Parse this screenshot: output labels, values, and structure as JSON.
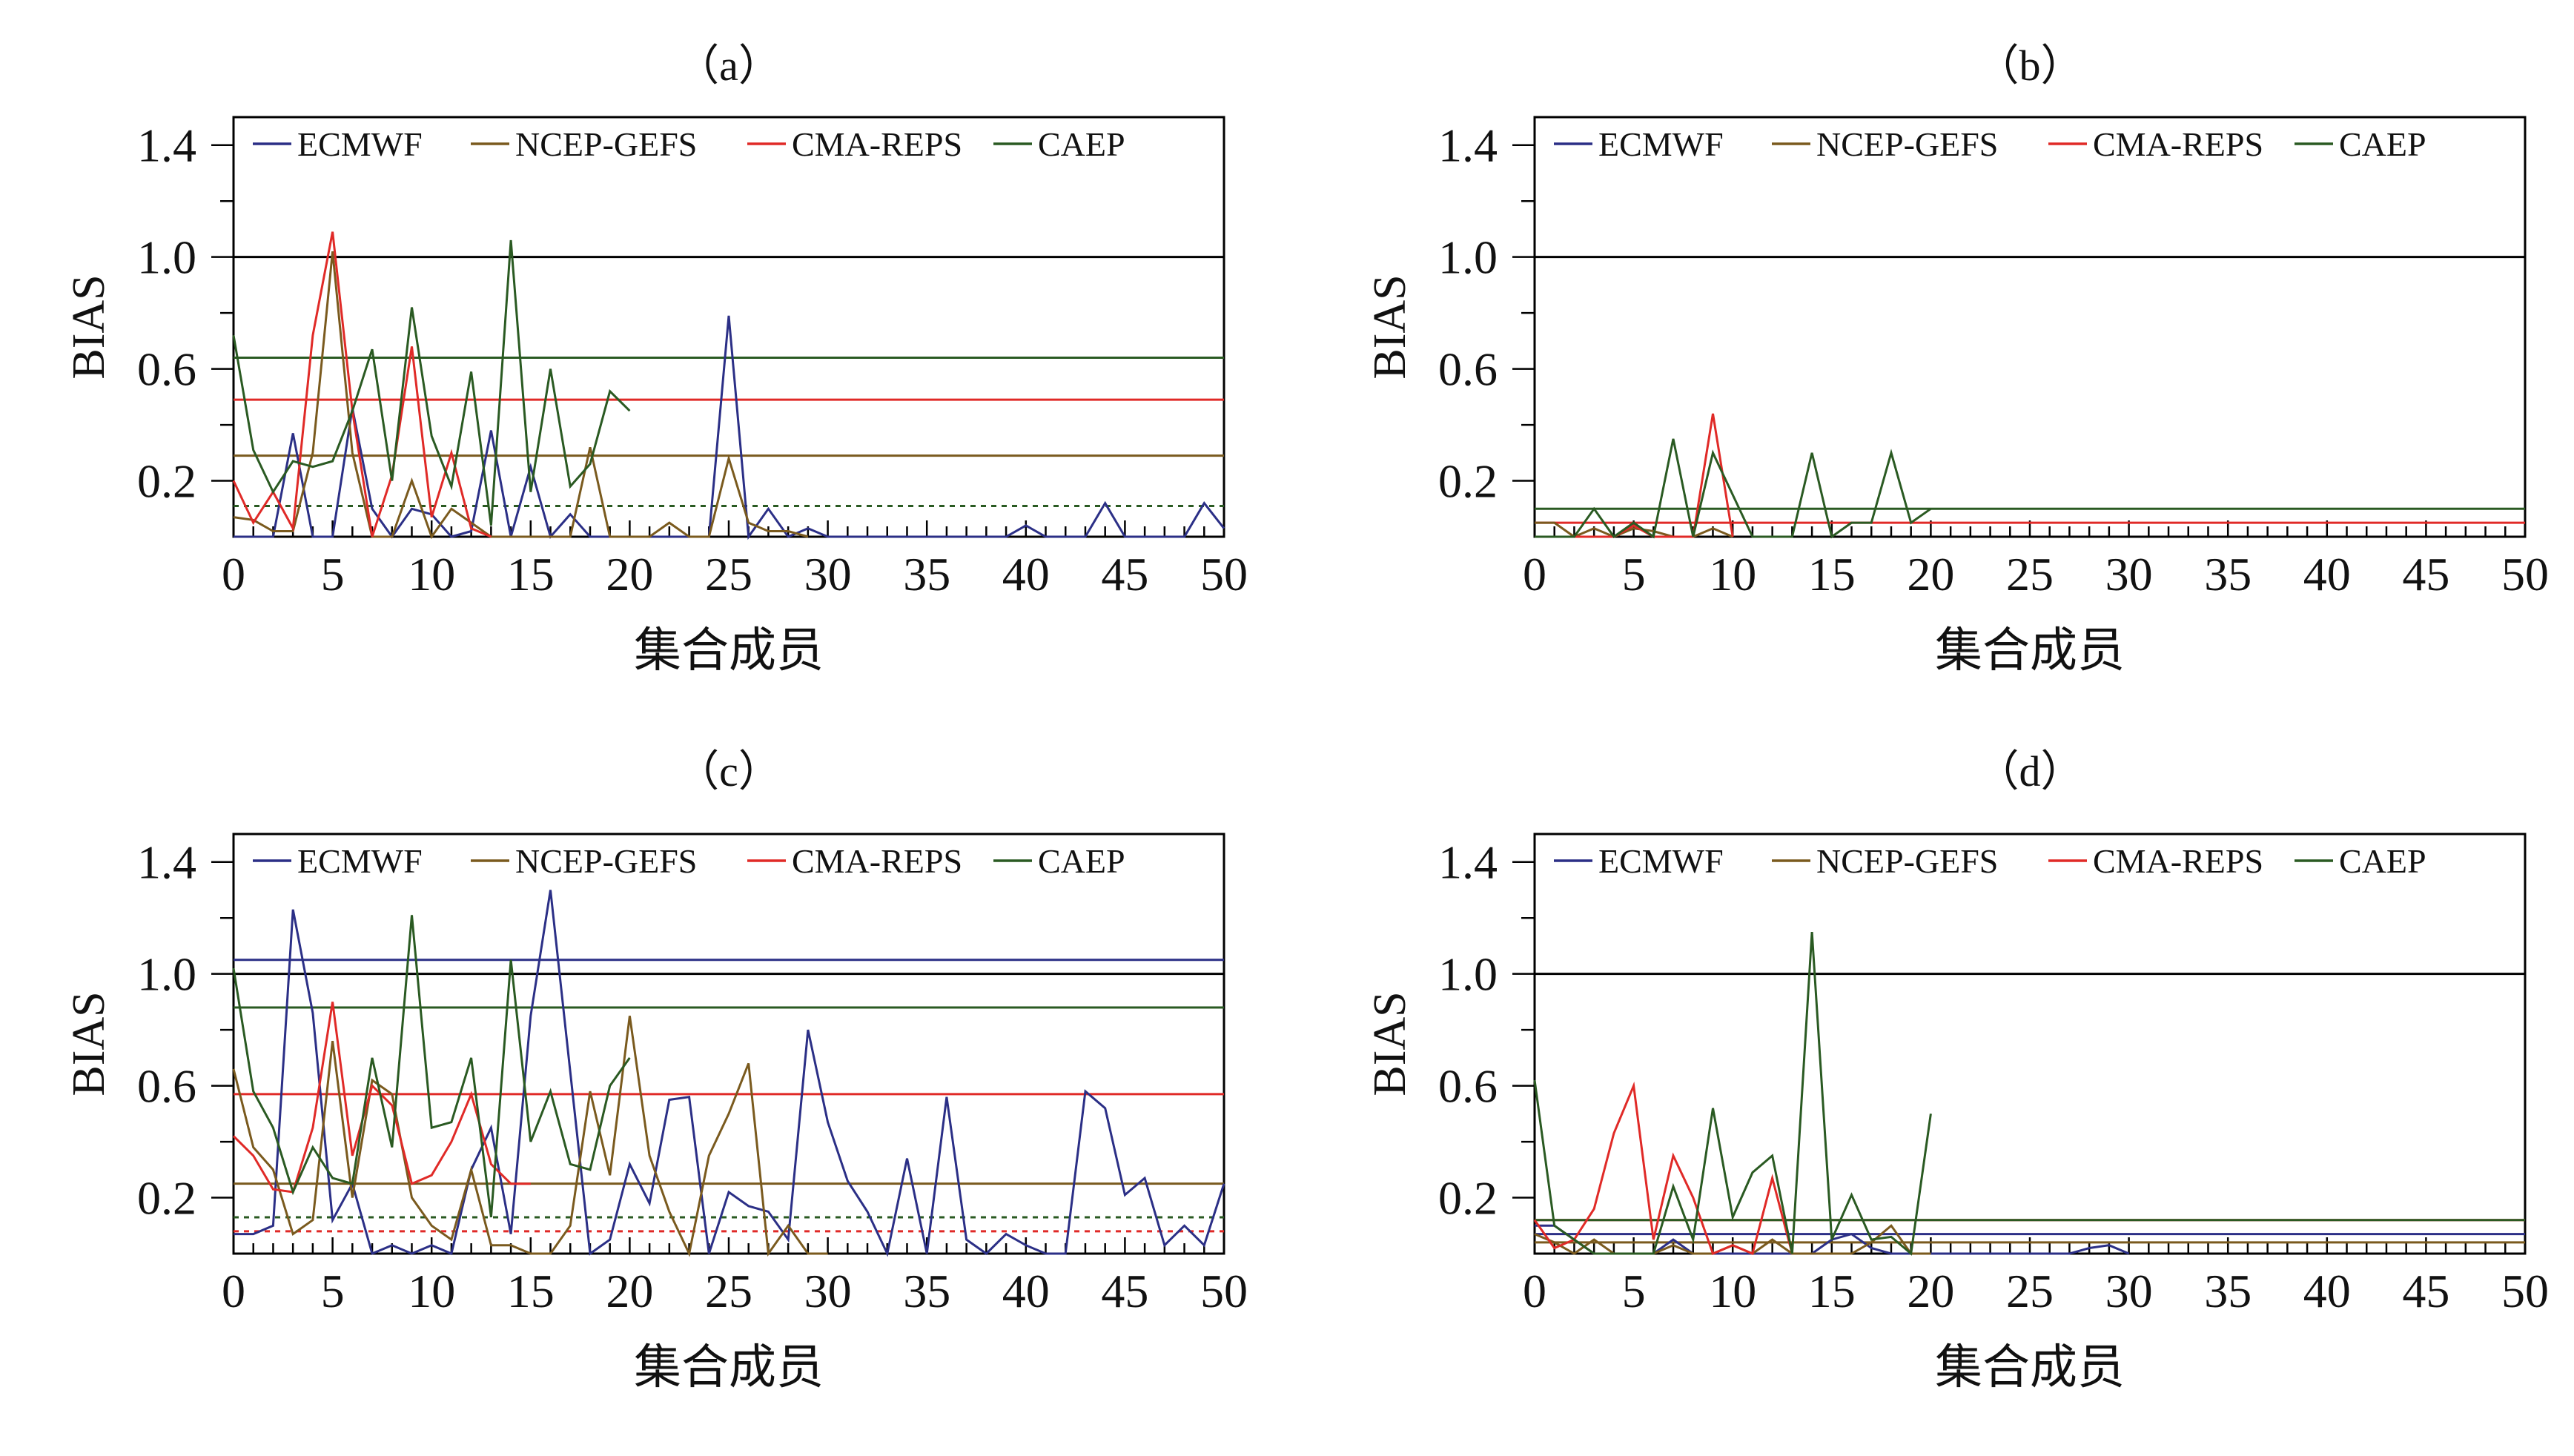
{
  "colors": {
    "ECMWF": "#2b2f86",
    "NCEP-GEFS": "#7a5a1e",
    "CMA-REPS": "#e02a27",
    "CAEP": "#2a5a22",
    "reference": "#000000"
  },
  "chart_data": [
    {
      "type": "line",
      "title": "（a）",
      "xlabel": "集合成员",
      "ylabel": "BIAS",
      "xlim": [
        0,
        50
      ],
      "ylim": [
        0,
        1.5
      ],
      "xticks": [
        0,
        5,
        10,
        15,
        20,
        25,
        30,
        35,
        40,
        45,
        50
      ],
      "yticks": [
        0.2,
        0.6,
        1.0,
        1.4
      ],
      "reference_line": 1.0,
      "legend": [
        "ECMWF",
        "NCEP-GEFS",
        "CMA-REPS",
        "CAEP"
      ],
      "series": [
        {
          "name": "ECMWF",
          "mean": null,
          "mean_style": "solid",
          "x": [
            0,
            1,
            2,
            3,
            4,
            5,
            6,
            7,
            8,
            9,
            10,
            11,
            12,
            13,
            14,
            15,
            16,
            17,
            18,
            19,
            20,
            21,
            22,
            23,
            24,
            25,
            26,
            27,
            28,
            29,
            30,
            31,
            32,
            33,
            34,
            35,
            36,
            37,
            38,
            39,
            40,
            41,
            42,
            43,
            44,
            45,
            46,
            47,
            48,
            49,
            50
          ],
          "values": [
            0,
            0,
            0,
            0.37,
            0,
            0,
            0.46,
            0.1,
            0,
            0.1,
            0.08,
            0,
            0.02,
            0.38,
            0,
            0.25,
            0,
            0.08,
            0,
            0,
            0,
            0,
            0,
            0,
            0,
            0.79,
            0,
            0.1,
            0,
            0.03,
            0,
            0,
            0,
            0,
            0,
            0,
            0,
            0,
            0,
            0,
            0.04,
            0,
            0,
            0,
            0.12,
            0,
            0,
            0,
            0,
            0.12,
            0.03
          ]
        },
        {
          "name": "NCEP-GEFS",
          "mean": 0.29,
          "mean_style": "solid",
          "x": [
            0,
            1,
            2,
            3,
            4,
            5,
            6,
            7,
            8,
            9,
            10,
            11,
            12,
            13,
            14,
            15,
            16,
            17,
            18,
            19,
            20,
            21,
            22,
            23,
            24,
            25,
            26,
            27,
            28,
            29
          ],
          "values": [
            0.07,
            0.06,
            0.02,
            0.02,
            0.3,
            1.02,
            0.3,
            0,
            0,
            0.2,
            0,
            0.1,
            0.05,
            0,
            0,
            0,
            0,
            0,
            0.32,
            0,
            0,
            0,
            0.05,
            0,
            0,
            0.28,
            0.05,
            0.02,
            0.02,
            0
          ]
        },
        {
          "name": "CMA-REPS",
          "mean": 0.49,
          "mean_style": "solid",
          "x": [
            0,
            1,
            2,
            3,
            4,
            5,
            6,
            7,
            8,
            9,
            10,
            11,
            12,
            13
          ],
          "values": [
            0.2,
            0.05,
            0.16,
            0.03,
            0.72,
            1.09,
            0.45,
            0,
            0.22,
            0.68,
            0.07,
            0.3,
            0.03,
            0
          ]
        },
        {
          "name": "CAEP",
          "mean": 0.64,
          "mean_style": "solid",
          "x": [
            0,
            1,
            2,
            3,
            4,
            5,
            6,
            7,
            8,
            9,
            10,
            11,
            12,
            13,
            14,
            15,
            16,
            17,
            18,
            19,
            20
          ],
          "values": [
            0.72,
            0.31,
            0.16,
            0.27,
            0.25,
            0.27,
            0.45,
            0.67,
            0.2,
            0.82,
            0.36,
            0.18,
            0.59,
            0.04,
            1.06,
            0.16,
            0.6,
            0.18,
            0.26,
            0.52,
            0.45
          ]
        }
      ],
      "dotted_line": {
        "value": 0.11,
        "color_series": "CAEP"
      }
    },
    {
      "type": "line",
      "title": "（b）",
      "xlabel": "集合成员",
      "ylabel": "BIAS",
      "xlim": [
        0,
        50
      ],
      "ylim": [
        0,
        1.5
      ],
      "xticks": [
        0,
        5,
        10,
        15,
        20,
        25,
        30,
        35,
        40,
        45,
        50
      ],
      "yticks": [
        0.2,
        0.6,
        1.0,
        1.4
      ],
      "reference_line": 1.0,
      "legend": [
        "ECMWF",
        "NCEP-GEFS",
        "CMA-REPS",
        "CAEP"
      ],
      "series": [
        {
          "name": "ECMWF",
          "mean": null,
          "mean_style": "solid",
          "x": [],
          "values": []
        },
        {
          "name": "NCEP-GEFS",
          "mean": null,
          "mean_style": "solid",
          "x": [
            0,
            1,
            2,
            3,
            4,
            5,
            6,
            7,
            8,
            9,
            10
          ],
          "values": [
            0.05,
            0.05,
            0,
            0.03,
            0,
            0.03,
            0.02,
            0,
            0,
            0.03,
            0
          ]
        },
        {
          "name": "CMA-REPS",
          "mean": 0.05,
          "mean_style": "solid",
          "x": [
            0,
            1,
            2,
            3,
            4,
            5,
            6,
            7,
            8,
            9,
            10
          ],
          "values": [
            0,
            0,
            0,
            0,
            0,
            0.04,
            0,
            0,
            0,
            0.44,
            0
          ]
        },
        {
          "name": "CAEP",
          "mean": 0.1,
          "mean_style": "solid",
          "x": [
            0,
            1,
            2,
            3,
            4,
            5,
            6,
            7,
            8,
            9,
            10,
            11,
            12,
            13,
            14,
            15,
            16,
            17,
            18,
            19,
            20
          ],
          "values": [
            0,
            0,
            0,
            0.1,
            0,
            0.05,
            0,
            0.35,
            0,
            0.3,
            0.15,
            0,
            0,
            0,
            0.3,
            0,
            0.05,
            0.05,
            0.3,
            0.05,
            0.1
          ]
        }
      ],
      "dotted_line": null
    },
    {
      "type": "line",
      "title": "（c）",
      "xlabel": "集合成员",
      "ylabel": "BIAS",
      "xlim": [
        0,
        50
      ],
      "ylim": [
        0,
        1.5
      ],
      "xticks": [
        0,
        5,
        10,
        15,
        20,
        25,
        30,
        35,
        40,
        45,
        50
      ],
      "yticks": [
        0.2,
        0.6,
        1.0,
        1.4
      ],
      "reference_line": 1.0,
      "legend": [
        "ECMWF",
        "NCEP-GEFS",
        "CMA-REPS",
        "CAEP"
      ],
      "series": [
        {
          "name": "ECMWF",
          "mean": 1.05,
          "mean_style": "solid",
          "x": [
            0,
            1,
            2,
            3,
            4,
            5,
            6,
            7,
            8,
            9,
            10,
            11,
            12,
            13,
            14,
            15,
            16,
            17,
            18,
            19,
            20,
            21,
            22,
            23,
            24,
            25,
            26,
            27,
            28,
            29,
            30,
            31,
            32,
            33,
            34,
            35,
            36,
            37,
            38,
            39,
            40,
            41,
            42,
            43,
            44,
            45,
            46,
            47,
            48,
            49,
            50
          ],
          "values": [
            0.07,
            0.07,
            0.1,
            1.23,
            0.86,
            0.12,
            0.25,
            0,
            0.03,
            0,
            0.03,
            0,
            0.3,
            0.45,
            0.07,
            0.85,
            1.3,
            0.65,
            0,
            0.05,
            0.32,
            0.18,
            0.55,
            0.56,
            0,
            0.22,
            0.17,
            0.15,
            0.05,
            0.8,
            0.47,
            0.26,
            0.15,
            0,
            0.34,
            0,
            0.56,
            0.05,
            0,
            0.07,
            0.03,
            0,
            0,
            0.58,
            0.52,
            0.21,
            0.27,
            0.03,
            0.1,
            0.03,
            0.25
          ]
        },
        {
          "name": "NCEP-GEFS",
          "mean": 0.25,
          "mean_style": "solid",
          "x": [
            0,
            1,
            2,
            3,
            4,
            5,
            6,
            7,
            8,
            9,
            10,
            11,
            12,
            13,
            14,
            15,
            16,
            17,
            18,
            19,
            20,
            21,
            22,
            23,
            24,
            25,
            26,
            27,
            28,
            29,
            30
          ],
          "values": [
            0.66,
            0.38,
            0.3,
            0.07,
            0.12,
            0.76,
            0.2,
            0.62,
            0.57,
            0.2,
            0.1,
            0.05,
            0.3,
            0.03,
            0.03,
            0,
            0,
            0.1,
            0.58,
            0.28,
            0.85,
            0.35,
            0.15,
            0,
            0.35,
            0.5,
            0.68,
            0,
            0.1,
            0,
            0
          ]
        },
        {
          "name": "CMA-REPS",
          "mean": 0.57,
          "mean_style": "solid",
          "x": [
            0,
            1,
            2,
            3,
            4,
            5,
            6,
            7,
            8,
            9,
            10,
            11,
            12,
            13,
            14,
            15
          ],
          "values": [
            0.42,
            0.35,
            0.23,
            0.22,
            0.45,
            0.9,
            0.35,
            0.6,
            0.53,
            0.25,
            0.28,
            0.4,
            0.57,
            0.32,
            0.25,
            0.25
          ]
        },
        {
          "name": "CAEP",
          "mean": 0.88,
          "mean_style": "solid",
          "x": [
            0,
            1,
            2,
            3,
            4,
            5,
            6,
            7,
            8,
            9,
            10,
            11,
            12,
            13,
            14,
            15,
            16,
            17,
            18,
            19,
            20
          ],
          "values": [
            1.02,
            0.58,
            0.45,
            0.22,
            0.38,
            0.27,
            0.25,
            0.7,
            0.38,
            1.21,
            0.45,
            0.47,
            0.7,
            0.13,
            1.05,
            0.4,
            0.58,
            0.32,
            0.3,
            0.6,
            0.7
          ]
        }
      ],
      "dotted_lines": [
        {
          "value": 0.13,
          "color_series": "CAEP"
        },
        {
          "value": 0.08,
          "color_series": "CMA-REPS"
        }
      ]
    },
    {
      "type": "line",
      "title": "（d）",
      "xlabel": "集合成员",
      "ylabel": "BIAS",
      "xlim": [
        0,
        50
      ],
      "ylim": [
        0,
        1.5
      ],
      "xticks": [
        0,
        5,
        10,
        15,
        20,
        25,
        30,
        35,
        40,
        45,
        50
      ],
      "yticks": [
        0.2,
        0.6,
        1.0,
        1.4
      ],
      "reference_line": 1.0,
      "legend": [
        "ECMWF",
        "NCEP-GEFS",
        "CMA-REPS",
        "CAEP"
      ],
      "series": [
        {
          "name": "ECMWF",
          "mean": 0.07,
          "mean_style": "solid",
          "x": [
            0,
            1,
            2,
            3,
            4,
            5,
            6,
            7,
            8,
            9,
            10,
            11,
            12,
            13,
            14,
            15,
            16,
            17,
            18,
            19,
            20,
            21,
            22,
            23,
            24,
            25,
            26,
            27,
            28,
            29,
            30
          ],
          "values": [
            0.1,
            0.1,
            0.05,
            0,
            0,
            0,
            0,
            0.05,
            0,
            0,
            0,
            0,
            0,
            0,
            0,
            0.05,
            0.07,
            0.02,
            0,
            0,
            0,
            0,
            0,
            0,
            0,
            0,
            0,
            0,
            0.02,
            0.03,
            0
          ]
        },
        {
          "name": "NCEP-GEFS",
          "mean": 0.04,
          "mean_style": "solid",
          "x": [
            0,
            1,
            2,
            3,
            4,
            5,
            6,
            7,
            8,
            9,
            10,
            11,
            12,
            13,
            14,
            15,
            16,
            17,
            18,
            19,
            20
          ],
          "values": [
            0.07,
            0.04,
            0,
            0.05,
            0,
            0,
            0,
            0.03,
            0,
            0,
            0.03,
            0,
            0.05,
            0,
            0,
            0,
            0,
            0.04,
            0.1,
            0,
            0
          ]
        },
        {
          "name": "CMA-REPS",
          "mean": 0.12,
          "mean_style": "solid",
          "x": [
            0,
            1,
            2,
            3,
            4,
            5,
            6,
            7,
            8,
            9,
            10,
            11,
            12,
            13
          ],
          "values": [
            0.12,
            0.02,
            0.05,
            0.16,
            0.43,
            0.6,
            0.05,
            0.35,
            0.2,
            0,
            0.03,
            0,
            0.27,
            0
          ]
        },
        {
          "name": "CAEP",
          "mean": 0.12,
          "mean_style": "solid",
          "x": [
            0,
            1,
            2,
            3,
            4,
            5,
            6,
            7,
            8,
            9,
            10,
            11,
            12,
            13,
            14,
            15,
            16,
            17,
            18,
            19,
            20
          ],
          "values": [
            0.62,
            0.1,
            0.05,
            0,
            0,
            0,
            0,
            0.24,
            0.05,
            0.52,
            0.13,
            0.29,
            0.35,
            0,
            1.15,
            0.05,
            0.21,
            0.05,
            0.06,
            0,
            0.5
          ]
        }
      ],
      "dotted_line": null
    }
  ]
}
